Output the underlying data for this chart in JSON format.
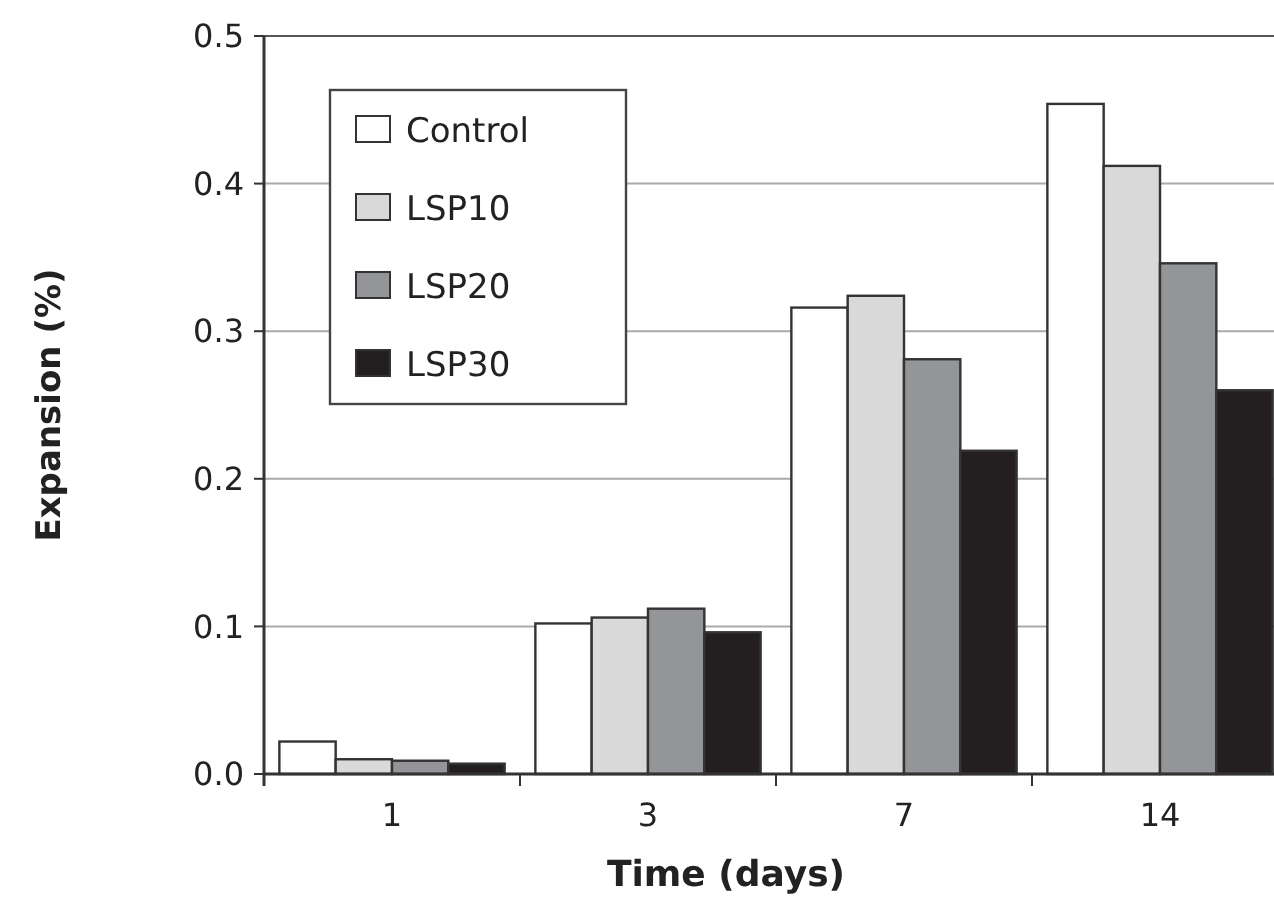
{
  "chart_data": {
    "type": "bar",
    "xlabel": "Time (days)",
    "ylabel": "Expansion (%)",
    "categories": [
      "1",
      "3",
      "7",
      "14"
    ],
    "series": [
      {
        "name": "Control",
        "color": "#ffffff",
        "values": [
          0.022,
          0.102,
          0.316,
          0.454
        ]
      },
      {
        "name": "LSP10",
        "color": "#d9d9d9",
        "values": [
          0.01,
          0.106,
          0.324,
          0.412
        ]
      },
      {
        "name": "LSP20",
        "color": "#939598",
        "values": [
          0.009,
          0.112,
          0.281,
          0.346
        ]
      },
      {
        "name": "LSP30",
        "color": "#231f20",
        "values": [
          0.007,
          0.096,
          0.219,
          0.26
        ]
      }
    ],
    "ylim": [
      0,
      0.5
    ],
    "yticks": [
      {
        "value": 0,
        "label": "0.0"
      },
      {
        "value": 0.1,
        "label": "0.1"
      },
      {
        "value": 0.2,
        "label": "0.2"
      },
      {
        "value": 0.3,
        "label": "0.3"
      },
      {
        "value": 0.4,
        "label": "0.4"
      },
      {
        "value": 0.5,
        "label": "0.5"
      }
    ],
    "grid": "y",
    "legend": "top left"
  }
}
